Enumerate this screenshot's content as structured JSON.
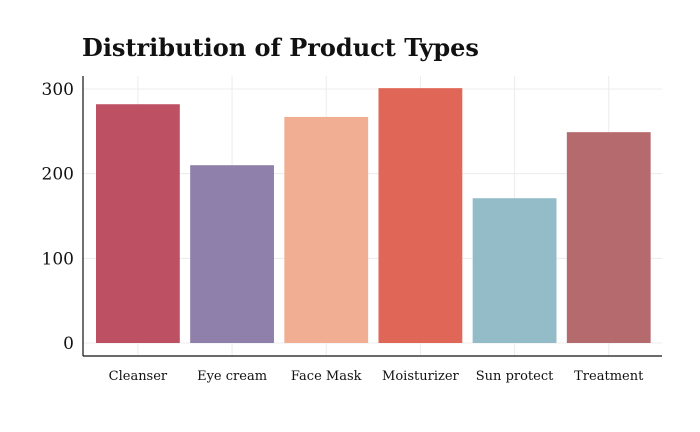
{
  "chart_data": {
    "type": "bar",
    "title": "Distribution of Product Types",
    "xlabel": "",
    "ylabel": "",
    "categories": [
      "Cleanser",
      "Eye cream",
      "Face Mask",
      "Moisturizer",
      "Sun protect",
      "Treatment"
    ],
    "values": [
      282,
      210,
      267,
      301,
      171,
      249
    ],
    "colors": [
      "#be5064",
      "#8e80ab",
      "#f2ae93",
      "#e06657",
      "#93bbc8",
      "#b56a6e"
    ],
    "yticks": [
      0,
      100,
      200,
      300
    ],
    "ylim": [
      0,
      310
    ],
    "grid": true,
    "legend": "none"
  }
}
